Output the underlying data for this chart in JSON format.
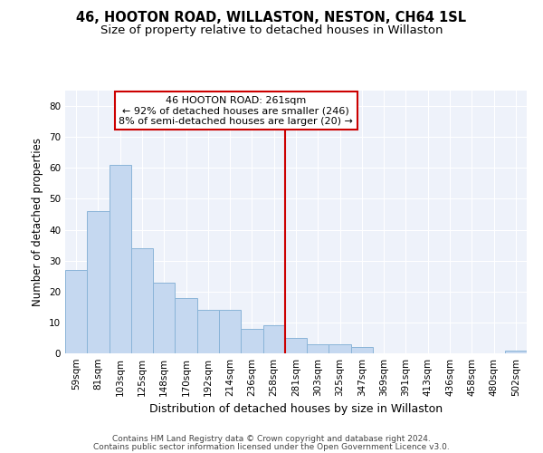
{
  "title1": "46, HOOTON ROAD, WILLASTON, NESTON, CH64 1SL",
  "title2": "Size of property relative to detached houses in Willaston",
  "xlabel": "Distribution of detached houses by size in Willaston",
  "ylabel": "Number of detached properties",
  "categories": [
    "59sqm",
    "81sqm",
    "103sqm",
    "125sqm",
    "148sqm",
    "170sqm",
    "192sqm",
    "214sqm",
    "236sqm",
    "258sqm",
    "281sqm",
    "303sqm",
    "325sqm",
    "347sqm",
    "369sqm",
    "391sqm",
    "413sqm",
    "436sqm",
    "458sqm",
    "480sqm",
    "502sqm"
  ],
  "values": [
    27,
    46,
    61,
    34,
    23,
    18,
    14,
    14,
    8,
    9,
    5,
    3,
    3,
    2,
    0,
    0,
    0,
    0,
    0,
    0,
    1
  ],
  "bar_color": "#c5d8f0",
  "bar_edge_color": "#8ab4d8",
  "vline_x": 9.5,
  "vline_color": "#cc0000",
  "annotation_box_text": "46 HOOTON ROAD: 261sqm\n← 92% of detached houses are smaller (246)\n8% of semi-detached houses are larger (20) →",
  "ylim": [
    0,
    85
  ],
  "yticks": [
    0,
    10,
    20,
    30,
    40,
    50,
    60,
    70,
    80
  ],
  "bg_color": "#ffffff",
  "plot_bg_color": "#eef2fa",
  "grid_color": "#ffffff",
  "footer1": "Contains HM Land Registry data © Crown copyright and database right 2024.",
  "footer2": "Contains public sector information licensed under the Open Government Licence v3.0.",
  "title1_fontsize": 10.5,
  "title2_fontsize": 9.5,
  "xlabel_fontsize": 9,
  "ylabel_fontsize": 8.5,
  "tick_fontsize": 7.5,
  "annot_fontsize": 8,
  "footer_fontsize": 6.5
}
